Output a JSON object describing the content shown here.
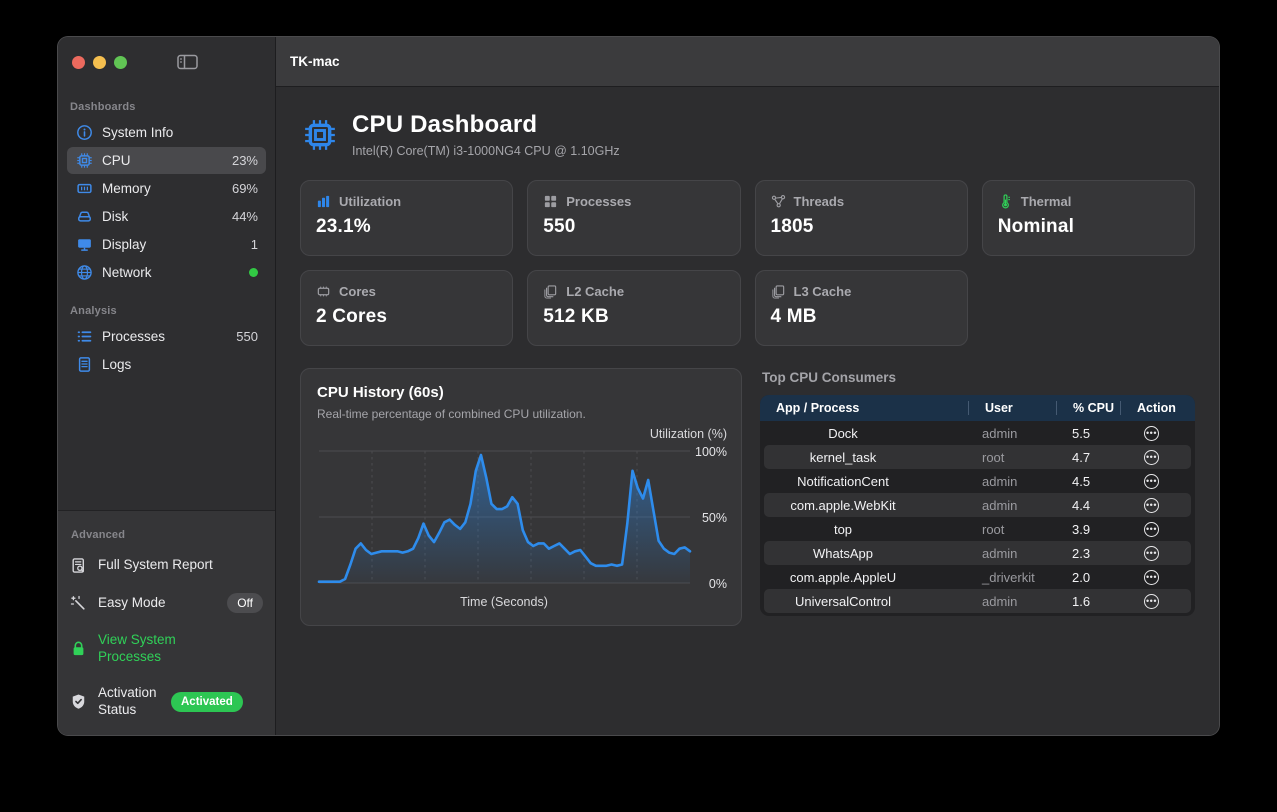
{
  "window": {
    "title": "TK-mac"
  },
  "colors": {
    "accent_blue": "#2e86ea",
    "green": "#30d158",
    "chart_line": "#2e8cec",
    "table_header_bg": "#1b3148",
    "badge_green": "#2dc653"
  },
  "sidebar": {
    "sections": [
      {
        "label": "Dashboards",
        "items": [
          {
            "label": "System Info",
            "value": "",
            "icon": "info-icon"
          },
          {
            "label": "CPU",
            "value": "23%",
            "icon": "cpu-chip-icon",
            "selected": true
          },
          {
            "label": "Memory",
            "value": "69%",
            "icon": "memory-icon"
          },
          {
            "label": "Disk",
            "value": "44%",
            "icon": "disk-icon"
          },
          {
            "label": "Display",
            "value": "1",
            "icon": "display-icon"
          },
          {
            "label": "Network",
            "value": "",
            "icon": "globe-icon",
            "status_dot": "green"
          }
        ]
      },
      {
        "label": "Analysis",
        "items": [
          {
            "label": "Processes",
            "value": "550",
            "icon": "list-icon"
          },
          {
            "label": "Logs",
            "value": "",
            "icon": "document-icon"
          }
        ]
      }
    ],
    "advanced": {
      "label": "Advanced",
      "items": [
        {
          "label": "Full System Report",
          "icon": "report-icon"
        },
        {
          "label": "Easy Mode",
          "icon": "wand-icon",
          "badge": "Off"
        },
        {
          "label": "View System Processes",
          "icon": "lock-icon",
          "highlight": "green"
        },
        {
          "label": "Activation Status",
          "icon": "shield-check-icon",
          "badge": "Activated"
        }
      ]
    }
  },
  "header": {
    "title": "CPU Dashboard",
    "subtitle": "Intel(R) Core(TM) i3-1000NG4 CPU @ 1.10GHz"
  },
  "stats": [
    {
      "label": "Utilization",
      "value": "23.1%",
      "icon": "bar-chart-icon",
      "icon_color": "#2e86ea"
    },
    {
      "label": "Processes",
      "value": "550",
      "icon": "grid-icon",
      "icon_color": "#9d9da2"
    },
    {
      "label": "Threads",
      "value": "1805",
      "icon": "nodes-icon",
      "icon_color": "#9d9da2"
    },
    {
      "label": "Thermal",
      "value": "Nominal",
      "icon": "thermometer-icon",
      "icon_color": "#30d158"
    },
    {
      "label": "Cores",
      "value": "2 Cores",
      "icon": "chip-outline-icon",
      "icon_color": "#9d9da2"
    },
    {
      "label": "L2 Cache",
      "value": "512 KB",
      "icon": "layers-icon",
      "icon_color": "#9d9da2"
    },
    {
      "label": "L3 Cache",
      "value": "4 MB",
      "icon": "layers-icon",
      "icon_color": "#9d9da2"
    }
  ],
  "chart_data": {
    "type": "area",
    "title": "CPU History (60s)",
    "subtitle": "Real-time percentage of combined CPU utilization.",
    "ylabel": "Utilization (%)",
    "xlabel": "Time (Seconds)",
    "yticks": [
      "100%",
      "50%",
      "0%"
    ],
    "ylim": [
      0,
      100
    ],
    "x_span_seconds": 60,
    "grid": true,
    "values": [
      1,
      1,
      1,
      1,
      1,
      3,
      14,
      26,
      30,
      25,
      22,
      23,
      24,
      24,
      24,
      24,
      23,
      24,
      26,
      34,
      45,
      36,
      31,
      38,
      46,
      48,
      44,
      41,
      46,
      60,
      85,
      97,
      80,
      60,
      56,
      56,
      58,
      65,
      60,
      40,
      31,
      28,
      30,
      30,
      26,
      28,
      30,
      26,
      22,
      24,
      25,
      20,
      15,
      13,
      13,
      13,
      14,
      13,
      14,
      45,
      85,
      72,
      64,
      78,
      55,
      32,
      26,
      23,
      22,
      26,
      27,
      24
    ]
  },
  "consumers": {
    "title": "Top CPU Consumers",
    "columns": [
      "App / Process",
      "User",
      "% CPU",
      "Action"
    ],
    "rows": [
      {
        "process": "Dock",
        "user": "admin",
        "cpu": "5.5"
      },
      {
        "process": "kernel_task",
        "user": "root",
        "cpu": "4.7"
      },
      {
        "process": "NotificationCent",
        "user": "admin",
        "cpu": "4.5"
      },
      {
        "process": "com.apple.WebKit",
        "user": "admin",
        "cpu": "4.4"
      },
      {
        "process": "top",
        "user": "root",
        "cpu": "3.9"
      },
      {
        "process": "WhatsApp",
        "user": "admin",
        "cpu": "2.3"
      },
      {
        "process": "com.apple.AppleU",
        "user": "_driverkit",
        "cpu": "2.0"
      },
      {
        "process": "UniversalControl",
        "user": "admin",
        "cpu": "1.6"
      }
    ]
  }
}
